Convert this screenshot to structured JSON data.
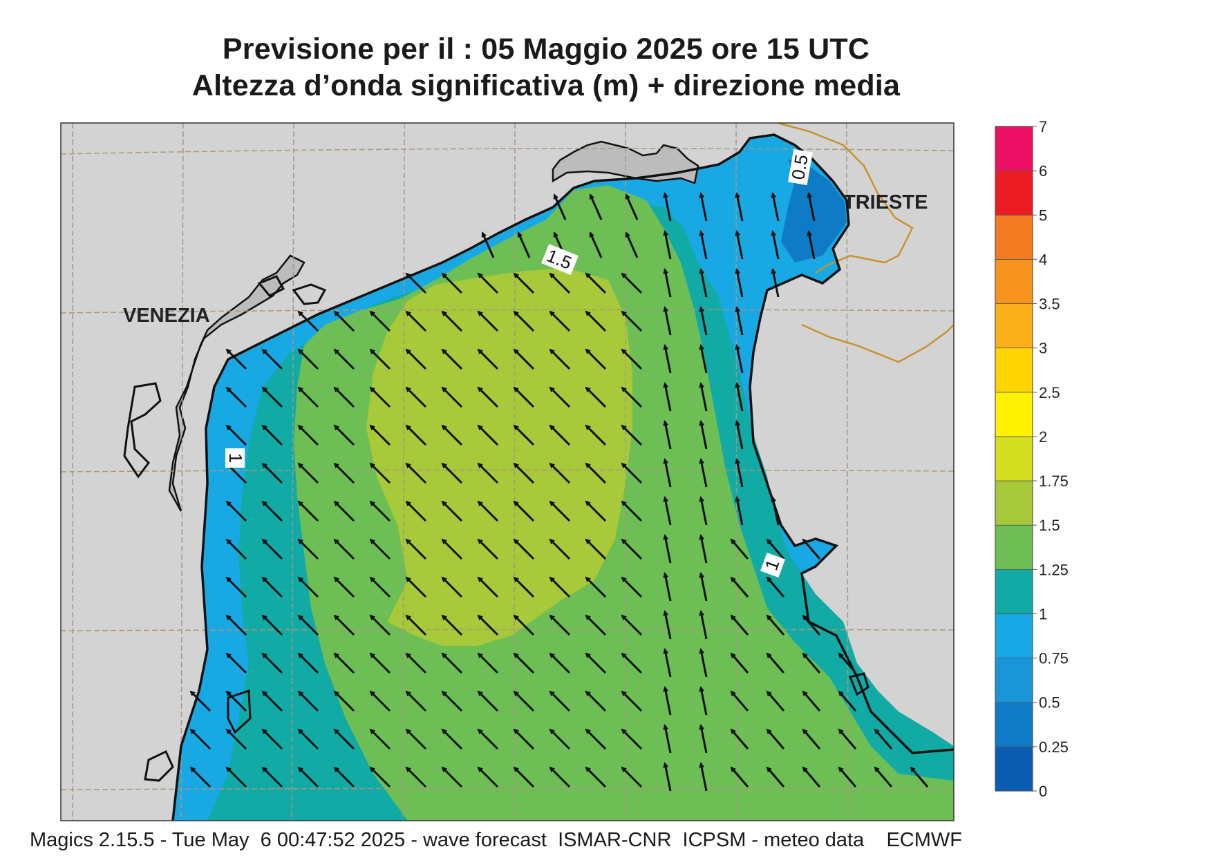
{
  "title": {
    "line1": "Previsione per il  :  05   Maggio  2025   ore 15 UTC",
    "line2": "Altezza d’onda significativa (m) + direzione media"
  },
  "map": {
    "region": "Northern Adriatic Sea",
    "cities": [
      "VENEZIA",
      "TRIESTE"
    ],
    "contour_labels": [
      "1.5",
      "1",
      "1",
      "0.5"
    ],
    "arrow_direction": "north-west",
    "colors": {
      "land": "#d3d3d3",
      "lagoon_land": "#bcbcbc",
      "coastline": "#111111",
      "border": "#c8912e",
      "graticule": "#a89880"
    }
  },
  "legend": {
    "ticks": [
      "7",
      "6",
      "5",
      "4",
      "3.5",
      "3",
      "2.5",
      "2",
      "1.75",
      "1.5",
      "1.25",
      "1",
      "0.75",
      "0.5",
      "0.25",
      "0"
    ],
    "colors": [
      "#0a5db0",
      "#0f7bc6",
      "#1a95d8",
      "#16a8e4",
      "#11aaa5",
      "#6dbe55",
      "#a7c93a",
      "#d4df1f",
      "#fff200",
      "#ffd400",
      "#fbb01a",
      "#f7941d",
      "#f47b20",
      "#ec1c24",
      "#ec1064"
    ]
  },
  "footer": "Magics 2.15.5 - Tue May  6 00:47:52 2025 - wave forecast  ISMAR-CNR  ICPSM - meteo data    ECMWF"
}
